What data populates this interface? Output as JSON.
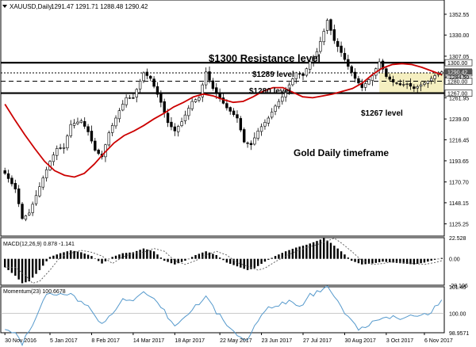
{
  "header": {
    "symbol": "XAUUSD,Daily",
    "ohlc": "1291.47 1291.71 1288.48 1290.42"
  },
  "chart_data": {
    "type": "candlestick",
    "price": {
      "ylim": [
        1112,
        1368
      ],
      "ticks": [
        "1352.55",
        "1330.00",
        "1307.05",
        "1284.50",
        "1261.95",
        "1239.00",
        "1216.45",
        "1193.65",
        "1170.70",
        "1148.15",
        "1125.25"
      ],
      "ma_values": [
        1255,
        1238,
        1222,
        1207,
        1193,
        1183,
        1178,
        1176,
        1180,
        1190,
        1202,
        1213,
        1221,
        1226,
        1232,
        1239,
        1245,
        1252,
        1257,
        1263,
        1266,
        1264,
        1260,
        1257,
        1258,
        1263,
        1269,
        1273,
        1273,
        1268,
        1263,
        1262,
        1264,
        1266,
        1269,
        1272,
        1278,
        1287,
        1294,
        1298,
        1299,
        1298,
        1295,
        1291,
        1287
      ],
      "close_anchors": [
        [
          0,
          1180
        ],
        [
          3,
          1163
        ],
        [
          5,
          1131
        ],
        [
          7,
          1137
        ],
        [
          11,
          1175
        ],
        [
          13,
          1193
        ],
        [
          15,
          1207
        ],
        [
          17,
          1208
        ],
        [
          19,
          1233
        ],
        [
          22,
          1237
        ],
        [
          24,
          1225
        ],
        [
          26,
          1205
        ],
        [
          28,
          1198
        ],
        [
          30,
          1224
        ],
        [
          33,
          1248
        ],
        [
          35,
          1262
        ],
        [
          37,
          1262
        ],
        [
          40,
          1289
        ],
        [
          42,
          1283
        ],
        [
          45,
          1257
        ],
        [
          47,
          1235
        ],
        [
          49,
          1226
        ],
        [
          51,
          1236
        ],
        [
          54,
          1258
        ],
        [
          56,
          1262
        ],
        [
          58,
          1290
        ],
        [
          60,
          1272
        ],
        [
          62,
          1261
        ],
        [
          64,
          1251
        ],
        [
          67,
          1240
        ],
        [
          69,
          1214
        ],
        [
          71,
          1211
        ],
        [
          73,
          1226
        ],
        [
          76,
          1240
        ],
        [
          78,
          1253
        ],
        [
          80,
          1263
        ],
        [
          82,
          1276
        ],
        [
          84,
          1289
        ],
        [
          86,
          1286
        ],
        [
          88,
          1301
        ],
        [
          90,
          1312
        ],
        [
          92,
          1334
        ],
        [
          93,
          1346
        ],
        [
          95,
          1324
        ],
        [
          97,
          1311
        ],
        [
          99,
          1296
        ],
        [
          101,
          1283
        ],
        [
          103,
          1273
        ],
        [
          106,
          1286
        ],
        [
          108,
          1301
        ],
        [
          110,
          1285
        ],
        [
          112,
          1279
        ],
        [
          114,
          1276
        ],
        [
          116,
          1277
        ],
        [
          118,
          1272
        ],
        [
          120,
          1276
        ],
        [
          122,
          1280
        ],
        [
          124,
          1286
        ],
        [
          126,
          1290
        ]
      ],
      "levels": [
        {
          "name": "$1300 Resistance level",
          "value": 1300.0,
          "label": "1300.00"
        },
        {
          "name": "$1289 level",
          "value": 1289.0,
          "label": "1289.00"
        },
        {
          "name": "$1280 level",
          "value": 1280.0,
          "label": "1280.00"
        },
        {
          "name": "$1267 level",
          "value": 1267.0,
          "label": "1267.00"
        }
      ],
      "current_price": "1290.42",
      "annotations": [
        "$1300 Resistance level",
        "$1289 level",
        "$1280 level",
        "$1267 level",
        "Gold Daily timeframe"
      ]
    },
    "macd": {
      "title": "MACD(12,26,9) 0.878 -1.141",
      "ticks": [
        "22.528",
        "0.00",
        "-28.106"
      ],
      "ylim": [
        -28.106,
        22.528
      ],
      "hist_anchors": [
        [
          0,
          -9
        ],
        [
          3,
          -18
        ],
        [
          5,
          -26
        ],
        [
          7,
          -24
        ],
        [
          10,
          -12
        ],
        [
          13,
          2
        ],
        [
          16,
          6
        ],
        [
          19,
          9
        ],
        [
          22,
          7
        ],
        [
          25,
          3
        ],
        [
          28,
          -5
        ],
        [
          31,
          2
        ],
        [
          34,
          6
        ],
        [
          37,
          7
        ],
        [
          40,
          11
        ],
        [
          43,
          8
        ],
        [
          46,
          -2
        ],
        [
          49,
          -6
        ],
        [
          52,
          -2
        ],
        [
          55,
          4
        ],
        [
          58,
          8
        ],
        [
          61,
          4
        ],
        [
          64,
          -4
        ],
        [
          67,
          -8
        ],
        [
          70,
          -12
        ],
        [
          72,
          -10
        ],
        [
          75,
          -3
        ],
        [
          78,
          3
        ],
        [
          81,
          8
        ],
        [
          84,
          12
        ],
        [
          87,
          15
        ],
        [
          90,
          19
        ],
        [
          92,
          22
        ],
        [
          94,
          17
        ],
        [
          97,
          8
        ],
        [
          100,
          -2
        ],
        [
          103,
          -6
        ],
        [
          106,
          -5
        ],
        [
          109,
          -3
        ],
        [
          112,
          -4
        ],
        [
          115,
          -5
        ],
        [
          118,
          -6
        ],
        [
          121,
          -4
        ],
        [
          124,
          -1
        ],
        [
          126,
          0.9
        ]
      ],
      "signal_lag": 3
    },
    "momentum": {
      "title": "Momentum(23) 100.6678",
      "ticks": [
        "101.45",
        "100.00",
        "98.9571"
      ],
      "ylim": [
        98.9571,
        101.45
      ],
      "anchors": [
        [
          0,
          99.1
        ],
        [
          3,
          98.95
        ],
        [
          5,
          98.4
        ],
        [
          8,
          99.3
        ],
        [
          11,
          100.8
        ],
        [
          13,
          101.2
        ],
        [
          16,
          101.0
        ],
        [
          19,
          101.0
        ],
        [
          22,
          100.6
        ],
        [
          25,
          100.2
        ],
        [
          28,
          99.4
        ],
        [
          31,
          100.0
        ],
        [
          34,
          100.9
        ],
        [
          37,
          100.6
        ],
        [
          40,
          101.1
        ],
        [
          43,
          100.7
        ],
        [
          46,
          100.1
        ],
        [
          49,
          99.3
        ],
        [
          52,
          99.8
        ],
        [
          55,
          100.4
        ],
        [
          58,
          100.9
        ],
        [
          61,
          100.1
        ],
        [
          64,
          99.4
        ],
        [
          67,
          98.8
        ],
        [
          70,
          98.5
        ],
        [
          73,
          99.7
        ],
        [
          76,
          100.3
        ],
        [
          79,
          100.5
        ],
        [
          82,
          100.7
        ],
        [
          85,
          100.3
        ],
        [
          88,
          101.0
        ],
        [
          91,
          101.2
        ],
        [
          93,
          101.4
        ],
        [
          96,
          100.6
        ],
        [
          99,
          99.8
        ],
        [
          102,
          99.2
        ],
        [
          105,
          99.4
        ],
        [
          108,
          99.6
        ],
        [
          111,
          99.8
        ],
        [
          114,
          99.7
        ],
        [
          117,
          100.0
        ],
        [
          120,
          99.9
        ],
        [
          123,
          100.1
        ],
        [
          126,
          100.67
        ]
      ]
    },
    "x_ticks": [
      {
        "label": "30 Nov 2016",
        "idx": 0
      },
      {
        "label": "5 Jan 2017",
        "idx": 13
      },
      {
        "label": "8 Feb 2017",
        "idx": 25
      },
      {
        "label": "14 Mar 2017",
        "idx": 37
      },
      {
        "label": "18 Apr 2017",
        "idx": 49
      },
      {
        "label": "22 May 2017",
        "idx": 62
      },
      {
        "label": "23 Jun 2017",
        "idx": 74
      },
      {
        "label": "27 Jul 2017",
        "idx": 86
      },
      {
        "label": "30 Aug 2017",
        "idx": 98
      },
      {
        "label": "3 Oct 2017",
        "idx": 110
      },
      {
        "label": "6 Nov 2017",
        "idx": 121
      }
    ],
    "colors": {
      "candle": "#000000",
      "ma": "#cc0000",
      "macd_signal": "#555555",
      "momentum": "#5599cc",
      "range_box": "#f5efc0",
      "current_price_box": "#555555"
    }
  }
}
